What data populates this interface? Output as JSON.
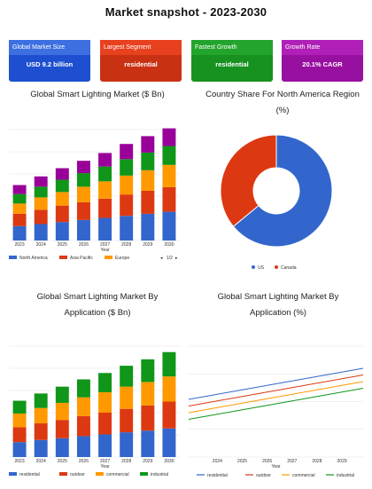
{
  "title": "Market snapshot - 2023-2030",
  "cards": [
    {
      "label": "Global Market Size",
      "value": "USD 9.2 billion",
      "header_color": "#3c6fe0",
      "body_color": "#1d4fd0"
    },
    {
      "label": "Largest Segment",
      "value": "residential",
      "header_color": "#e8411f",
      "body_color": "#c93113"
    },
    {
      "label": "Fastest Growth",
      "value": "residential",
      "header_color": "#23a52d",
      "body_color": "#17911f"
    },
    {
      "label": "Growth Rate",
      "value": "20.1% CAGR",
      "header_color": "#b020b8",
      "body_color": "#98109f"
    }
  ],
  "legend_page": "1/2",
  "chart_data": [
    {
      "type": "bar",
      "stacked": true,
      "title": "Global Smart Lighting Market ($ Bn)",
      "xlabel": "Year",
      "categories": [
        "2023",
        "2024",
        "2025",
        "2026",
        "2027",
        "2028",
        "2029",
        "2030"
      ],
      "series": [
        {
          "name": "North America",
          "color": "#3366cc",
          "values": [
            3.5,
            4.0,
            4.5,
            5.0,
            5.5,
            6.0,
            6.5,
            7.0
          ]
        },
        {
          "name": "Asia Pacific",
          "color": "#dc3912",
          "values": [
            3.0,
            3.5,
            4.0,
            4.3,
            4.7,
            5.2,
            5.6,
            6.0
          ]
        },
        {
          "name": "Europe",
          "color": "#ff9900",
          "values": [
            2.5,
            3.0,
            3.3,
            3.8,
            4.2,
            4.6,
            5.0,
            5.4
          ]
        },
        {
          "name": "",
          "color": "#109618",
          "values": [
            2.3,
            2.6,
            3.0,
            3.3,
            3.6,
            4.0,
            4.3,
            4.6
          ]
        },
        {
          "name": "",
          "color": "#990099",
          "values": [
            2.2,
            2.5,
            2.8,
            3.0,
            3.3,
            3.7,
            4.0,
            4.3
          ]
        }
      ],
      "grid": true,
      "legend": "bottom"
    },
    {
      "type": "pie",
      "donut": true,
      "title": "Country Share For North America Region (%)",
      "categories": [
        "US",
        "Canada"
      ],
      "values": [
        64,
        36
      ],
      "colors": [
        "#3366cc",
        "#dc3912"
      ],
      "legend": "bottom"
    },
    {
      "type": "bar",
      "stacked": true,
      "title": "Global Smart Lighting Market By Application ($ Bn)",
      "xlabel": "Year",
      "categories": [
        "2023",
        "2024",
        "2025",
        "2026",
        "2027",
        "2028",
        "2029",
        "2030"
      ],
      "series": [
        {
          "name": "residential",
          "color": "#3366cc",
          "values": [
            3.5,
            4.0,
            4.4,
            4.9,
            5.3,
            5.8,
            6.2,
            6.7
          ]
        },
        {
          "name": "outdoor",
          "color": "#dc3912",
          "values": [
            3.5,
            3.9,
            4.3,
            4.7,
            5.1,
            5.5,
            5.9,
            6.3
          ]
        },
        {
          "name": "commercial",
          "color": "#ff9900",
          "values": [
            3.2,
            3.6,
            4.0,
            4.4,
            4.8,
            5.2,
            5.5,
            5.9
          ]
        },
        {
          "name": "industrial",
          "color": "#109618",
          "values": [
            3.0,
            3.4,
            3.8,
            4.2,
            4.5,
            4.9,
            5.3,
            5.7
          ]
        }
      ],
      "grid": true,
      "legend": "bottom"
    },
    {
      "type": "line",
      "title": "Global Smart Lighting Market By Application (%)",
      "xlabel": "Year",
      "x": [
        "2023",
        "2024",
        "2025",
        "2026",
        "2027",
        "2028",
        "2029",
        "2030"
      ],
      "tick_labels": [
        "2024",
        "2025",
        "2026",
        "2027",
        "2028",
        "2029"
      ],
      "series": [
        {
          "name": "residential",
          "color": "#3366cc",
          "values": [
            36,
            38,
            40,
            42,
            44,
            46,
            48,
            50
          ]
        },
        {
          "name": "outdoor",
          "color": "#dc3912",
          "values": [
            33,
            35,
            37,
            39,
            41,
            43,
            45,
            47
          ]
        },
        {
          "name": "commercial",
          "color": "#ff9900",
          "values": [
            30,
            32,
            34,
            36,
            38,
            40,
            42,
            44
          ]
        },
        {
          "name": "industrial",
          "color": "#109618",
          "values": [
            27,
            29,
            31,
            33,
            35,
            37,
            39,
            41
          ]
        }
      ],
      "ylim": [
        10,
        60
      ],
      "grid": true,
      "legend": "bottom"
    }
  ]
}
